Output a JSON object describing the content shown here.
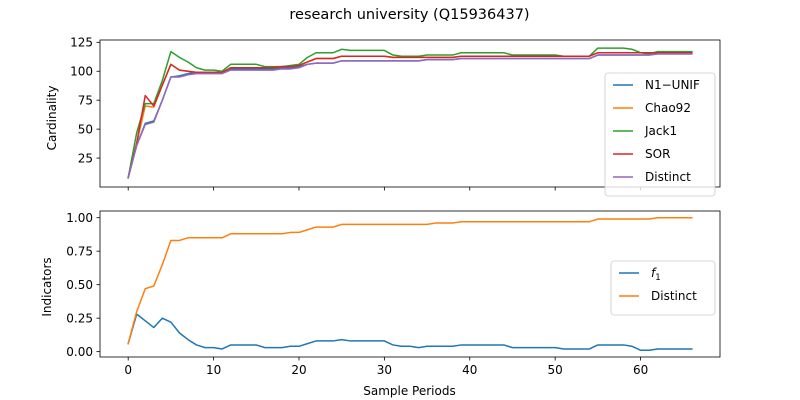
{
  "colors": {
    "blue": "#1f77b4",
    "orange": "#ff7f0e",
    "green": "#2ca02c",
    "red": "#d62728",
    "purple": "#9467bd"
  },
  "chart_data": [
    {
      "type": "line",
      "title": "research university (Q15936437)",
      "xlabel": "",
      "ylabel": "Cardinality",
      "xlim": [
        -3.3,
        69.3
      ],
      "ylim": [
        0,
        127
      ],
      "yticks": [
        25,
        50,
        75,
        100,
        125
      ],
      "xticks": [
        0,
        10,
        20,
        30,
        40,
        50,
        60
      ],
      "show_xtick_labels": false,
      "legend_position": "center-right",
      "x": [
        0,
        1,
        2,
        3,
        4,
        5,
        6,
        7,
        8,
        9,
        10,
        11,
        12,
        13,
        14,
        15,
        16,
        17,
        18,
        19,
        20,
        21,
        22,
        23,
        24,
        25,
        26,
        27,
        28,
        29,
        30,
        31,
        32,
        33,
        34,
        35,
        36,
        37,
        38,
        39,
        40,
        41,
        42,
        43,
        44,
        45,
        46,
        47,
        48,
        49,
        50,
        51,
        52,
        53,
        54,
        55,
        56,
        57,
        58,
        59,
        60,
        61,
        62,
        63,
        64,
        65,
        66
      ],
      "series": [
        {
          "name": "N1−UNIF",
          "color": "#1f77b4",
          "values": [
            8,
            36,
            55,
            57,
            75,
            95,
            96,
            98,
            99,
            99,
            99,
            99,
            102,
            102,
            102,
            102,
            102,
            102,
            103,
            103,
            104,
            106,
            107,
            107,
            107,
            109,
            109,
            109,
            109,
            109,
            109,
            109,
            109,
            109,
            109,
            110,
            110,
            110,
            110,
            111,
            111,
            111,
            111,
            111,
            111,
            111,
            111,
            111,
            111,
            111,
            111,
            111,
            111,
            111,
            111,
            114,
            114,
            114,
            114,
            114,
            114,
            114,
            115,
            115,
            115,
            115,
            115
          ]
        },
        {
          "name": "Chao92",
          "color": "#ff7f0e",
          "values": [
            8,
            38,
            70,
            69,
            88,
            106,
            101,
            100,
            99,
            99,
            99,
            99,
            103,
            103,
            103,
            103,
            103,
            103,
            104,
            104,
            105,
            108,
            111,
            111,
            111,
            113,
            113,
            113,
            113,
            113,
            113,
            112,
            112,
            112,
            112,
            112,
            112,
            112,
            112,
            113,
            113,
            113,
            113,
            113,
            113,
            113,
            113,
            113,
            113,
            113,
            113,
            113,
            113,
            113,
            113,
            116,
            116,
            116,
            116,
            116,
            116,
            116,
            116,
            116,
            116,
            116,
            116
          ]
        },
        {
          "name": "Jack1",
          "color": "#2ca02c",
          "values": [
            8,
            47,
            72,
            72,
            92,
            117,
            112,
            108,
            103,
            101,
            101,
            100,
            106,
            106,
            106,
            106,
            104,
            104,
            104,
            105,
            106,
            112,
            116,
            116,
            116,
            119,
            118,
            118,
            118,
            118,
            118,
            114,
            113,
            113,
            113,
            114,
            114,
            114,
            114,
            116,
            116,
            116,
            116,
            116,
            116,
            114,
            114,
            114,
            114,
            114,
            114,
            113,
            113,
            113,
            113,
            120,
            120,
            120,
            120,
            119,
            116,
            115,
            117,
            117,
            117,
            117,
            117
          ]
        },
        {
          "name": "SOR",
          "color": "#d62728",
          "values": [
            8,
            38,
            79,
            70,
            88,
            106,
            101,
            100,
            99,
            99,
            99,
            99,
            103,
            103,
            103,
            103,
            103,
            103,
            104,
            104,
            105,
            108,
            111,
            111,
            111,
            113,
            113,
            113,
            113,
            113,
            113,
            112,
            112,
            112,
            112,
            112,
            112,
            112,
            112,
            113,
            113,
            113,
            113,
            113,
            113,
            113,
            113,
            113,
            113,
            113,
            113,
            113,
            113,
            113,
            113,
            116,
            116,
            116,
            116,
            116,
            116,
            116,
            116,
            116,
            116,
            116,
            116
          ]
        },
        {
          "name": "Distinct",
          "color": "#9467bd",
          "values": [
            8,
            36,
            54,
            56,
            75,
            95,
            95,
            97,
            98,
            98,
            98,
            98,
            101,
            101,
            101,
            101,
            101,
            101,
            102,
            102,
            103,
            106,
            107,
            107,
            107,
            109,
            109,
            109,
            109,
            109,
            109,
            109,
            109,
            109,
            109,
            110,
            110,
            110,
            110,
            111,
            111,
            111,
            111,
            111,
            111,
            111,
            111,
            111,
            111,
            111,
            111,
            111,
            111,
            111,
            111,
            114,
            114,
            114,
            114,
            114,
            114,
            114,
            115,
            115,
            115,
            115,
            115
          ]
        }
      ]
    },
    {
      "type": "line",
      "title": "",
      "xlabel": "Sample Periods",
      "ylabel": "Indicators",
      "xlim": [
        -3.3,
        69.3
      ],
      "ylim": [
        -0.04,
        1.05
      ],
      "yticks": [
        0.0,
        0.25,
        0.5,
        0.75,
        1.0
      ],
      "ytick_labels": [
        "0.00",
        "0.25",
        "0.50",
        "0.75",
        "1.00"
      ],
      "xticks": [
        0,
        10,
        20,
        30,
        40,
        50,
        60
      ],
      "xtick_labels": [
        "0",
        "10",
        "20",
        "30",
        "40",
        "50",
        "60"
      ],
      "legend_position": "center-right",
      "x": [
        0,
        1,
        2,
        3,
        4,
        5,
        6,
        7,
        8,
        9,
        10,
        11,
        12,
        13,
        14,
        15,
        16,
        17,
        18,
        19,
        20,
        21,
        22,
        23,
        24,
        25,
        26,
        27,
        28,
        29,
        30,
        31,
        32,
        33,
        34,
        35,
        36,
        37,
        38,
        39,
        40,
        41,
        42,
        43,
        44,
        45,
        46,
        47,
        48,
        49,
        50,
        51,
        52,
        53,
        54,
        55,
        56,
        57,
        58,
        59,
        60,
        61,
        62,
        63,
        64,
        65,
        66
      ],
      "series": [
        {
          "name": "f1",
          "color": "#1f77b4",
          "values": [
            0.06,
            0.28,
            0.23,
            0.18,
            0.25,
            0.22,
            0.14,
            0.09,
            0.05,
            0.03,
            0.03,
            0.02,
            0.05,
            0.05,
            0.05,
            0.05,
            0.03,
            0.03,
            0.03,
            0.04,
            0.04,
            0.06,
            0.08,
            0.08,
            0.08,
            0.09,
            0.08,
            0.08,
            0.08,
            0.08,
            0.08,
            0.05,
            0.04,
            0.04,
            0.03,
            0.04,
            0.04,
            0.04,
            0.04,
            0.05,
            0.05,
            0.05,
            0.05,
            0.05,
            0.05,
            0.03,
            0.03,
            0.03,
            0.03,
            0.03,
            0.03,
            0.02,
            0.02,
            0.02,
            0.02,
            0.05,
            0.05,
            0.05,
            0.05,
            0.04,
            0.01,
            0.01,
            0.02,
            0.02,
            0.02,
            0.02,
            0.02
          ]
        },
        {
          "name": "Distinct",
          "color": "#ff7f0e",
          "values": [
            0.06,
            0.3,
            0.47,
            0.49,
            0.65,
            0.83,
            0.83,
            0.85,
            0.85,
            0.85,
            0.85,
            0.85,
            0.88,
            0.88,
            0.88,
            0.88,
            0.88,
            0.88,
            0.88,
            0.89,
            0.89,
            0.91,
            0.93,
            0.93,
            0.93,
            0.95,
            0.95,
            0.95,
            0.95,
            0.95,
            0.95,
            0.95,
            0.95,
            0.95,
            0.95,
            0.95,
            0.96,
            0.96,
            0.96,
            0.97,
            0.97,
            0.97,
            0.97,
            0.97,
            0.97,
            0.97,
            0.97,
            0.97,
            0.97,
            0.97,
            0.97,
            0.97,
            0.97,
            0.97,
            0.97,
            0.99,
            0.99,
            0.99,
            0.99,
            0.99,
            0.99,
            0.99,
            1.0,
            1.0,
            1.0,
            1.0,
            1.0
          ]
        }
      ]
    }
  ]
}
